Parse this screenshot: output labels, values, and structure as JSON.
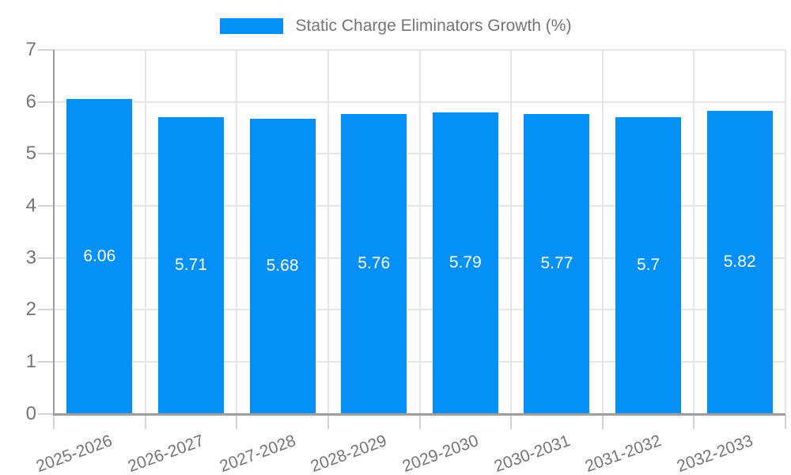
{
  "legend": {
    "items": [
      {
        "label": "Static Charge Eliminators Growth (%)",
        "color": "#0590f8"
      }
    ]
  },
  "chart_data": {
    "type": "bar",
    "title": "Static Charge Eliminators Growth (%)",
    "categories": [
      "2025-2026",
      "2026-2027",
      "2027-2028",
      "2028-2029",
      "2029-2030",
      "2030-2031",
      "2031-2032",
      "2032-2033"
    ],
    "values": [
      6.06,
      5.71,
      5.68,
      5.76,
      5.79,
      5.77,
      5.7,
      5.82
    ],
    "value_labels": [
      "6.06",
      "5.71",
      "5.68",
      "5.76",
      "5.79",
      "5.77",
      "5.7",
      "5.82"
    ],
    "xlabel": "",
    "ylabel": "",
    "ylim": [
      0,
      7
    ],
    "y_ticks": [
      0,
      1,
      2,
      3,
      4,
      5,
      6,
      7
    ],
    "grid": true,
    "legend_position": "top-center",
    "x_tick_rotation_deg": -20,
    "bar_color": "#0590f8",
    "value_label_color": "#ffffff"
  },
  "colors": {
    "bar": "#0590f8",
    "grid": "#e6e6e6",
    "axis": "#9e9e9e",
    "tick_mark": "#d4d4d4",
    "text": "#757575",
    "value_text": "#ffffff",
    "background": "#ffffff"
  }
}
